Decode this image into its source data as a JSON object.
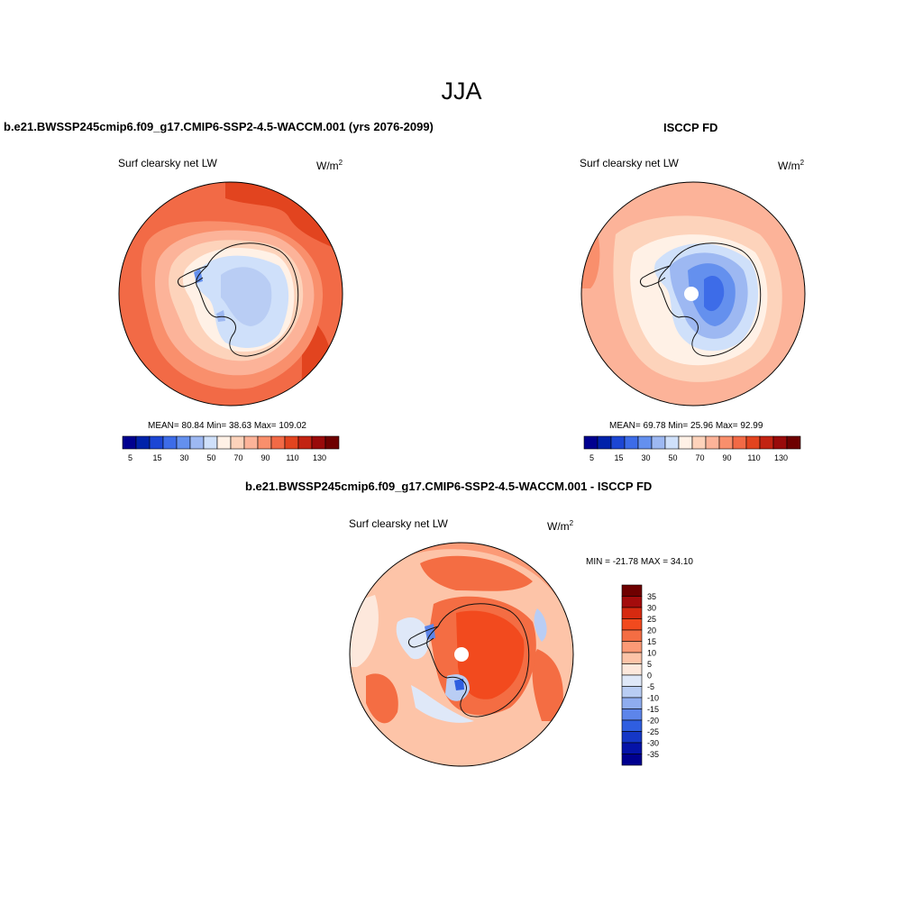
{
  "page_title": "JJA",
  "colors": {
    "seq_levels": [
      "#00008f",
      "#0022aa",
      "#1c46d4",
      "#3d6ce8",
      "#6490ee",
      "#9db8f2",
      "#cfe0fa",
      "#fff1e6",
      "#fdd3bb",
      "#fcb399",
      "#f98f6c",
      "#f26a46",
      "#e2441f",
      "#c22312",
      "#990a0a",
      "#6e0000"
    ],
    "diff_levels": [
      "#6e0000",
      "#a40c0c",
      "#d62a10",
      "#f24a1e",
      "#f46d43",
      "#fc9a76",
      "#fdc4a8",
      "#fde8dc",
      "#dfe8f8",
      "#b9cdf4",
      "#8fadf0",
      "#5d85ea",
      "#2f5ee0",
      "#1537c6",
      "#0513a8",
      "#00008f"
    ],
    "land_outline": "#111111"
  },
  "panels": [
    {
      "id": "model",
      "title": "b.e21.BWSSP245cmip6.f09_g17.CMIP6-SSP2-4.5-WACCM.001 (yrs 2076-2099)",
      "variable": "Surf clearsky net LW",
      "units_base": "W/m",
      "units_sup": "2",
      "stats": "MEAN=  80.84  Min=  38.63  Max= 109.02",
      "colorbar_ticks": [
        "5",
        "15",
        "30",
        "50",
        "70",
        "90",
        "110",
        "130"
      ]
    },
    {
      "id": "obs",
      "title": "ISCCP FD",
      "variable": "Surf clearsky net LW",
      "units_base": "W/m",
      "units_sup": "2",
      "stats": "MEAN=  69.78  Min=  25.96  Max=  92.99",
      "colorbar_ticks": [
        "5",
        "15",
        "30",
        "50",
        "70",
        "90",
        "110",
        "130"
      ]
    },
    {
      "id": "diff",
      "title": "b.e21.BWSSP245cmip6.f09_g17.CMIP6-SSP2-4.5-WACCM.001 - ISCCP FD",
      "variable": "Surf clearsky net LW",
      "units_base": "W/m",
      "units_sup": "2",
      "stats": "MIN = -21.78 MAX =  34.10",
      "colorbar_ticks": [
        "35",
        "30",
        "25",
        "20",
        "15",
        "10",
        "5",
        "0",
        "-5",
        "-10",
        "-15",
        "-20",
        "-25",
        "-30",
        "-35"
      ]
    }
  ]
}
